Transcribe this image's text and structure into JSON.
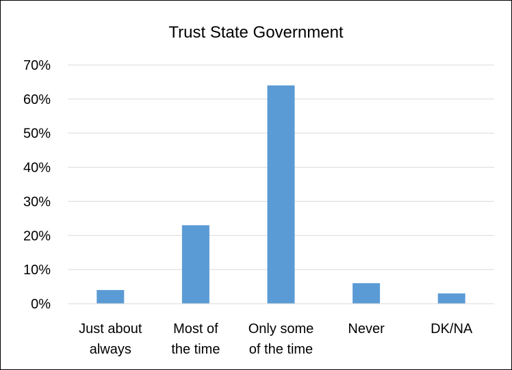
{
  "chart_data": {
    "type": "bar",
    "title": "Trust State Government",
    "categories": [
      [
        "Just about",
        "always"
      ],
      [
        "Most of",
        "the time"
      ],
      [
        "Only some",
        "of the time"
      ],
      [
        "Never"
      ],
      [
        "DK/NA"
      ]
    ],
    "values": [
      4,
      23,
      64,
      6,
      3
    ],
    "ylim": [
      0,
      70
    ],
    "yticks": [
      0,
      10,
      20,
      30,
      40,
      50,
      60,
      70
    ],
    "ytick_labels": [
      "0%",
      "10%",
      "20%",
      "30%",
      "40%",
      "50%",
      "60%",
      "70%"
    ],
    "xlabel": "",
    "ylabel": "",
    "grid": true,
    "legend": "none",
    "bar_color": "#5b9bd5"
  }
}
